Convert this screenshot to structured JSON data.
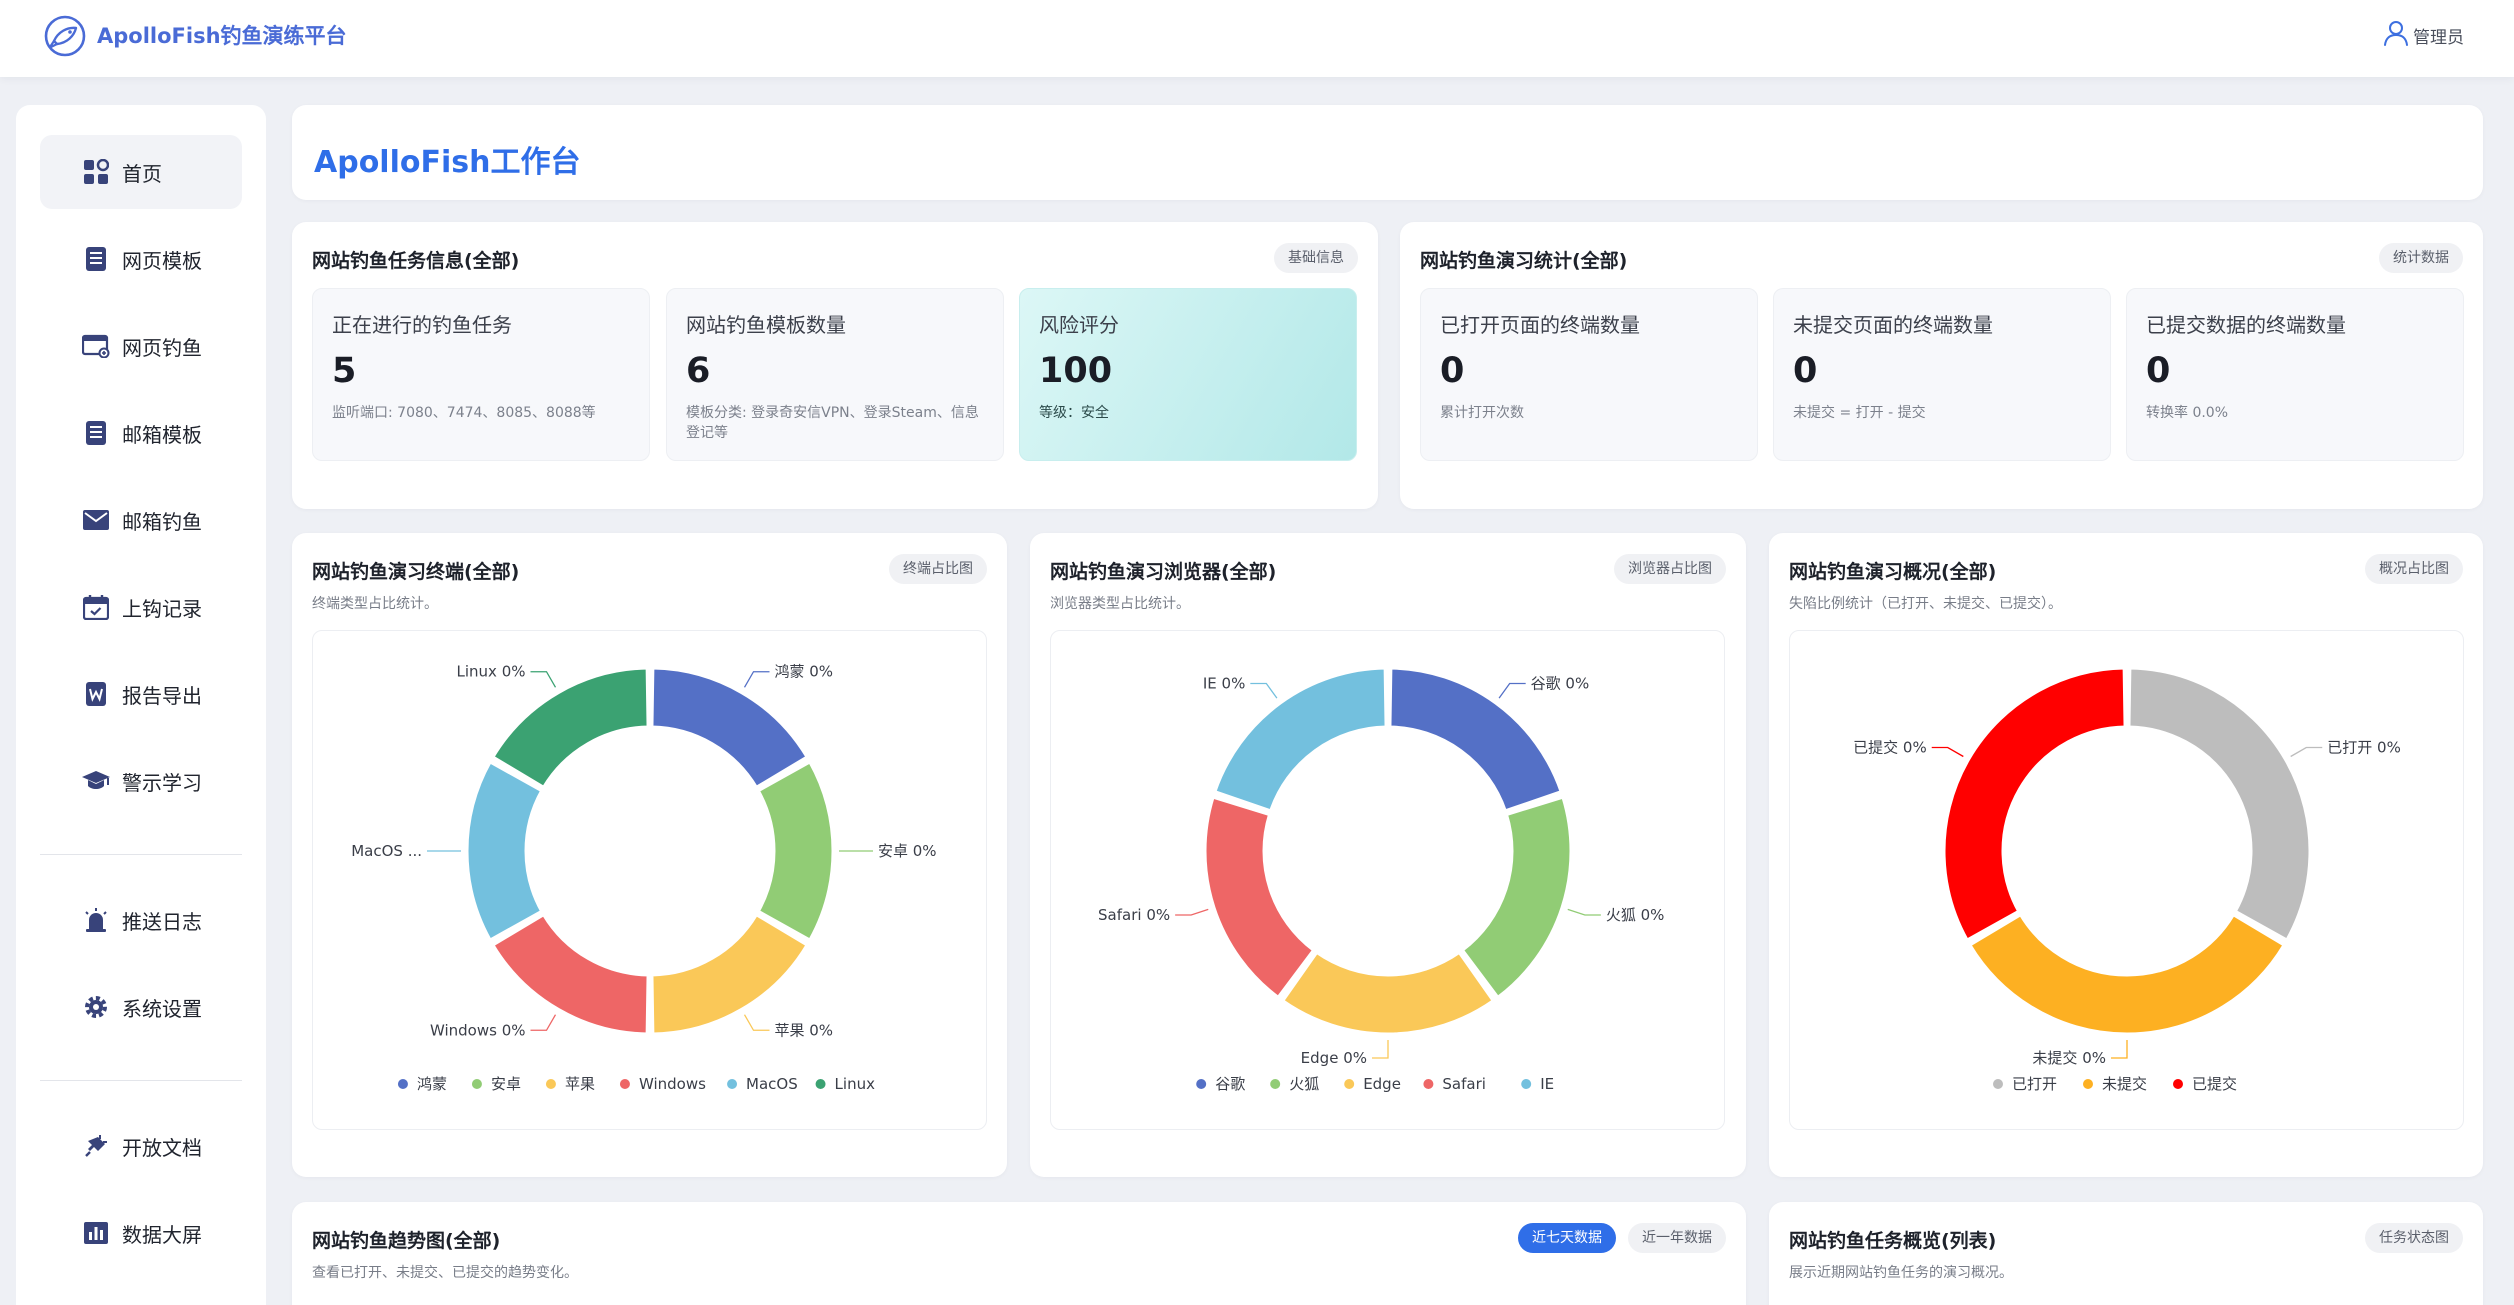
{
  "header": {
    "brand": "ApolloFish钓鱼演练平台",
    "user": "管理员"
  },
  "sidebar": {
    "items": [
      {
        "label": "首页",
        "icon": "dashboard-icon"
      },
      {
        "label": "网页模板",
        "icon": "document-list-icon"
      },
      {
        "label": "网页钓鱼",
        "icon": "browser-window-icon"
      },
      {
        "label": "邮箱模板",
        "icon": "document-list-icon"
      },
      {
        "label": "邮箱钓鱼",
        "icon": "mail-icon"
      },
      {
        "label": "上钩记录",
        "icon": "calendar-check-icon"
      },
      {
        "label": "报告导出",
        "icon": "word-report-icon"
      },
      {
        "label": "警示学习",
        "icon": "graduation-cap-icon"
      },
      {
        "label": "推送日志",
        "icon": "alarm-light-icon"
      },
      {
        "label": "系统设置",
        "icon": "gear-icon"
      },
      {
        "label": "开放文档",
        "icon": "plug-icon"
      },
      {
        "label": "数据大屏",
        "icon": "bar-chart-icon"
      }
    ]
  },
  "workspace": {
    "title": "ApolloFish工作台"
  },
  "task_info": {
    "title": "网站钓鱼任务信息(全部)",
    "tag": "基础信息",
    "stats": [
      {
        "label": "正在进行的钓鱼任务",
        "value": "5",
        "note": "监听端口: 7080、7474、8085、8088等"
      },
      {
        "label": "网站钓鱼模板数量",
        "value": "6",
        "note": "模板分类: 登录奇安信VPN、登录Steam、信息登记等"
      },
      {
        "label": "风险评分",
        "value": "100",
        "note": "等级：安全"
      }
    ]
  },
  "drill_stats": {
    "title": "网站钓鱼演习统计(全部)",
    "tag": "统计数据",
    "stats": [
      {
        "label": "已打开页面的终端数量",
        "value": "0",
        "note": "累计打开次数"
      },
      {
        "label": "未提交页面的终端数量",
        "value": "0",
        "note": "未提交 = 打开 - 提交"
      },
      {
        "label": "已提交数据的终端数量",
        "value": "0",
        "note": "转换率 0.0%"
      }
    ]
  },
  "donuts": [
    {
      "title": "网站钓鱼演习终端(全部)",
      "tag": "终端占比图",
      "subtitle": "终端类型占比统计。"
    },
    {
      "title": "网站钓鱼演习浏览器(全部)",
      "tag": "浏览器占比图",
      "subtitle": "浏览器类型占比统计。"
    },
    {
      "title": "网站钓鱼演习概况(全部)",
      "tag": "概况占比图",
      "subtitle": "失陷比例统计（已打开、未提交、已提交）。"
    }
  ],
  "chart_data": [
    {
      "type": "pie",
      "series": [
        {
          "name": "鸿蒙",
          "value": 0,
          "label": "鸿蒙 0%",
          "color": "#5470c6"
        },
        {
          "name": "安卓",
          "value": 0,
          "label": "安卓 0%",
          "color": "#91cc75"
        },
        {
          "name": "苹果",
          "value": 0,
          "label": "苹果 0%",
          "color": "#fac858"
        },
        {
          "name": "Windows",
          "value": 0,
          "label": "Windows 0%",
          "color": "#ee6666"
        },
        {
          "name": "MacOS",
          "value": 0,
          "label": "MacOS ...",
          "color": "#73c0de"
        },
        {
          "name": "Linux",
          "value": 0,
          "label": "Linux 0%",
          "color": "#3ba272"
        }
      ],
      "legend": "bottom"
    },
    {
      "type": "pie",
      "series": [
        {
          "name": "谷歌",
          "value": 0,
          "label": "谷歌 0%",
          "color": "#5470c6"
        },
        {
          "name": "火狐",
          "value": 0,
          "label": "火狐 0%",
          "color": "#91cc75"
        },
        {
          "name": "Edge",
          "value": 0,
          "label": "Edge 0%",
          "color": "#fac858"
        },
        {
          "name": "Safari",
          "value": 0,
          "label": "Safari 0%",
          "color": "#ee6666"
        },
        {
          "name": "IE",
          "value": 0,
          "label": "IE 0%",
          "color": "#73c0de"
        }
      ],
      "legend": "bottom"
    },
    {
      "type": "pie",
      "series": [
        {
          "name": "已打开",
          "value": 0,
          "label": "已打开 0%",
          "color": "#bdbdbd"
        },
        {
          "name": "未提交",
          "value": 0,
          "label": "未提交 0%",
          "color": "#fdb022"
        },
        {
          "name": "已提交",
          "value": 0,
          "label": "已提交 0%",
          "color": "#ff0000"
        }
      ],
      "legend": "bottom"
    }
  ],
  "trend": {
    "title": "网站钓鱼趋势图(全部)",
    "subtitle": "查看已打开、未提交、已提交的趋势变化。",
    "tab_week": "近七天数据",
    "tab_year": "近一年数据"
  },
  "task_overview": {
    "title": "网站钓鱼任务概览(列表)",
    "tag": "任务状态图",
    "subtitle": "展示近期网站钓鱼任务的演习概况。"
  }
}
